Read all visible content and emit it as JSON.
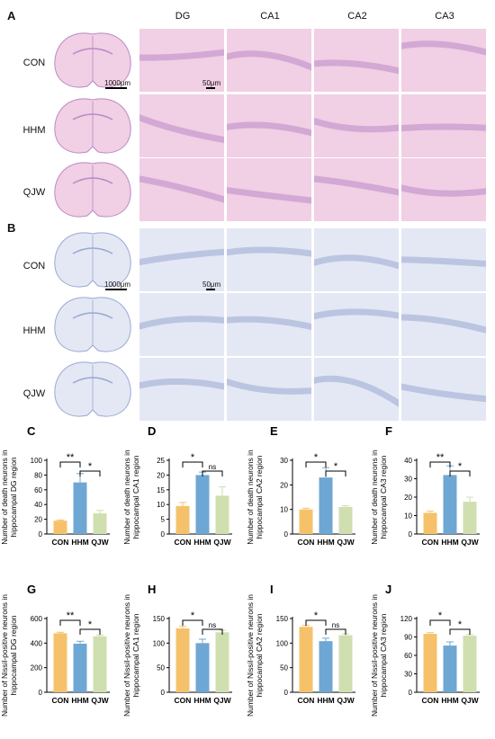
{
  "figure": {
    "panel_a_label": "A",
    "panel_b_label": "B",
    "columns": [
      "DG",
      "CA1",
      "CA2",
      "CA3"
    ],
    "rows": [
      "CON",
      "HHM",
      "QJW"
    ],
    "scale_whole": "1000μm",
    "scale_zoom": "50μm",
    "colors": {
      "he_bg": "#f1cfe4",
      "he_dark": "#b989c6",
      "nissl_bg": "#e3e8f4",
      "nissl_dark": "#9aa8d2",
      "con": "#f5c26b",
      "hhm": "#6ea7d4",
      "qjw": "#cfdfb0"
    }
  },
  "chart_data": [
    {
      "type": "bar",
      "panel": "C",
      "ylabel": "Number of death neurons in hippocampal DG region",
      "categories": [
        "CON",
        "HHM",
        "QJW"
      ],
      "values": [
        18,
        70,
        28
      ],
      "errors": [
        1,
        12,
        4
      ],
      "ylim": [
        0,
        100
      ],
      "yticks": [
        0,
        20,
        40,
        60,
        80,
        100
      ],
      "comparisons": [
        {
          "a": 0,
          "b": 1,
          "label": "**"
        },
        {
          "a": 1,
          "b": 2,
          "label": "*"
        }
      ]
    },
    {
      "type": "bar",
      "panel": "D",
      "ylabel": "Number of death neurons in hippocampal CA1 region",
      "categories": [
        "CON",
        "HHM",
        "QJW"
      ],
      "values": [
        9.5,
        20,
        13
      ],
      "errors": [
        1.2,
        1,
        3
      ],
      "ylim": [
        0,
        25
      ],
      "yticks": [
        0,
        5,
        10,
        15,
        20,
        25
      ],
      "comparisons": [
        {
          "a": 0,
          "b": 1,
          "label": "*"
        },
        {
          "a": 1,
          "b": 2,
          "label": "ns"
        }
      ]
    },
    {
      "type": "bar",
      "panel": "E",
      "ylabel": "Number of death neurons in hippocampal CA2 region",
      "categories": [
        "CON",
        "HHM",
        "QJW"
      ],
      "values": [
        10,
        23,
        11
      ],
      "errors": [
        0.5,
        4,
        0.5
      ],
      "ylim": [
        0,
        30
      ],
      "yticks": [
        0,
        10,
        20,
        30
      ],
      "comparisons": [
        {
          "a": 0,
          "b": 1,
          "label": "*"
        },
        {
          "a": 1,
          "b": 2,
          "label": "*"
        }
      ]
    },
    {
      "type": "bar",
      "panel": "F",
      "ylabel": "Number of death neurons in hippocampal CA3 region",
      "categories": [
        "CON",
        "HHM",
        "QJW"
      ],
      "values": [
        11.5,
        32,
        17.5
      ],
      "errors": [
        1,
        5,
        2.5
      ],
      "ylim": [
        0,
        40
      ],
      "yticks": [
        0,
        10,
        20,
        30,
        40
      ],
      "comparisons": [
        {
          "a": 0,
          "b": 1,
          "label": "**"
        },
        {
          "a": 1,
          "b": 2,
          "label": "*"
        }
      ]
    },
    {
      "type": "bar",
      "panel": "G",
      "ylabel": "Number of Nissil-positive neurons in hippocampal DG region",
      "categories": [
        "CON",
        "HHM",
        "QJW"
      ],
      "values": [
        480,
        395,
        455
      ],
      "errors": [
        8,
        20,
        10
      ],
      "ylim": [
        0,
        600
      ],
      "yticks": [
        0,
        200,
        400,
        600
      ],
      "comparisons": [
        {
          "a": 0,
          "b": 1,
          "label": "**"
        },
        {
          "a": 1,
          "b": 2,
          "label": "*"
        }
      ]
    },
    {
      "type": "bar",
      "panel": "H",
      "ylabel": "Number of Nissil-positive neurons in hippocampal CA1 region",
      "categories": [
        "CON",
        "HHM",
        "QJW"
      ],
      "values": [
        130,
        100,
        122
      ],
      "errors": [
        4,
        8,
        4
      ],
      "ylim": [
        0,
        150
      ],
      "yticks": [
        0,
        50,
        100,
        150
      ],
      "comparisons": [
        {
          "a": 0,
          "b": 1,
          "label": "*"
        },
        {
          "a": 1,
          "b": 2,
          "label": "ns"
        }
      ]
    },
    {
      "type": "bar",
      "panel": "I",
      "ylabel": "Number of Nissil-positive neurons in hippocampal CA2 region",
      "categories": [
        "CON",
        "HHM",
        "QJW"
      ],
      "values": [
        133,
        104,
        116
      ],
      "errors": [
        3,
        6,
        3
      ],
      "ylim": [
        0,
        150
      ],
      "yticks": [
        0,
        50,
        100,
        150
      ],
      "comparisons": [
        {
          "a": 0,
          "b": 1,
          "label": "*"
        },
        {
          "a": 1,
          "b": 2,
          "label": "ns"
        }
      ]
    },
    {
      "type": "bar",
      "panel": "J",
      "ylabel": "Number of Nissil-positive neurons in hippocampal CA3 region",
      "categories": [
        "CON",
        "HHM",
        "QJW"
      ],
      "values": [
        95,
        76,
        92
      ],
      "errors": [
        2,
        6,
        2
      ],
      "ylim": [
        0,
        120
      ],
      "yticks": [
        0,
        30,
        60,
        90,
        120
      ],
      "comparisons": [
        {
          "a": 0,
          "b": 1,
          "label": "*"
        },
        {
          "a": 1,
          "b": 2,
          "label": "*"
        }
      ]
    }
  ]
}
